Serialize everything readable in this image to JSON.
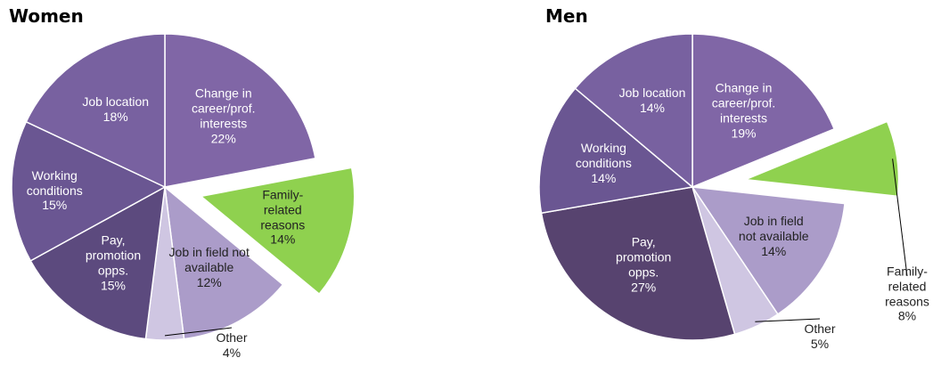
{
  "chart_data": [
    {
      "type": "pie",
      "title": "Women",
      "categories": [
        "Change in career/prof. interests",
        "Family-related reasons",
        "Job in field not available",
        "Other",
        "Pay, promotion opps.",
        "Working conditions",
        "Job location"
      ],
      "values": [
        22,
        14,
        12,
        4,
        15,
        15,
        18
      ],
      "value_labels": [
        "22%",
        "14%",
        "12%",
        "4%",
        "15%",
        "15%",
        "18%"
      ],
      "colors": [
        "#8066a6",
        "#8fd14f",
        "#ab9cc9",
        "#cfc6e2",
        "#5c4a7e",
        "#6a5692",
        "#7861a0"
      ],
      "exploded": "Family-related reasons"
    },
    {
      "type": "pie",
      "title": "Men",
      "categories": [
        "Change in career/prof. interests",
        "Family-related reasons",
        "Job in field not available",
        "Other",
        "Pay, promotion opps.",
        "Working conditions",
        "Job location"
      ],
      "values": [
        19,
        8,
        14,
        5,
        27,
        14,
        14
      ],
      "value_labels": [
        "19%",
        "8%",
        "14%",
        "5%",
        "27%",
        "14%",
        "14%"
      ],
      "colors": [
        "#8066a6",
        "#8fd14f",
        "#ab9cc9",
        "#cfc6e2",
        "#57436f",
        "#6a5692",
        "#7861a0"
      ],
      "exploded": "Family-related reasons"
    }
  ]
}
